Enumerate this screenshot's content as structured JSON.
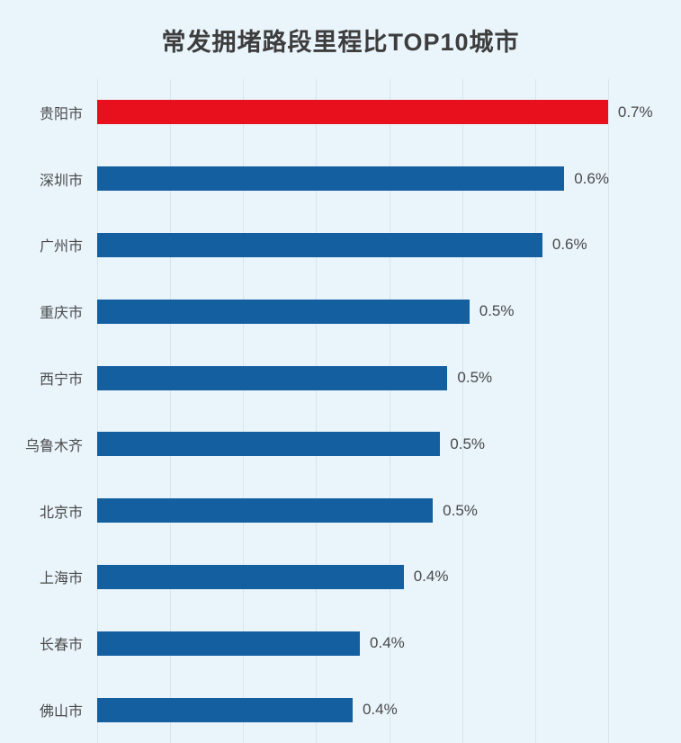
{
  "page": {
    "background": "#e9f4fb"
  },
  "chart_data": {
    "type": "bar",
    "orientation": "horizontal",
    "title": "常发拥堵路段里程比TOP10城市",
    "xlabel": "",
    "ylabel": "",
    "xlim": [
      0,
      0.8
    ],
    "grid": true,
    "legend_position": "none",
    "bar_color": "#145fa0",
    "highlight_color": "#e8101c",
    "highlight_index": 0,
    "categories": [
      "贵阳市",
      "深圳市",
      "广州市",
      "重庆市",
      "西宁市",
      "乌鲁木齐",
      "北京市",
      "上海市",
      "长春市",
      "佛山市"
    ],
    "values": [
      0.7,
      0.64,
      0.61,
      0.51,
      0.48,
      0.47,
      0.46,
      0.42,
      0.36,
      0.35
    ],
    "labels": [
      "0.7%",
      "0.6%",
      "0.6%",
      "0.5%",
      "0.5%",
      "0.5%",
      "0.5%",
      "0.4%",
      "0.4%",
      "0.4%"
    ]
  }
}
